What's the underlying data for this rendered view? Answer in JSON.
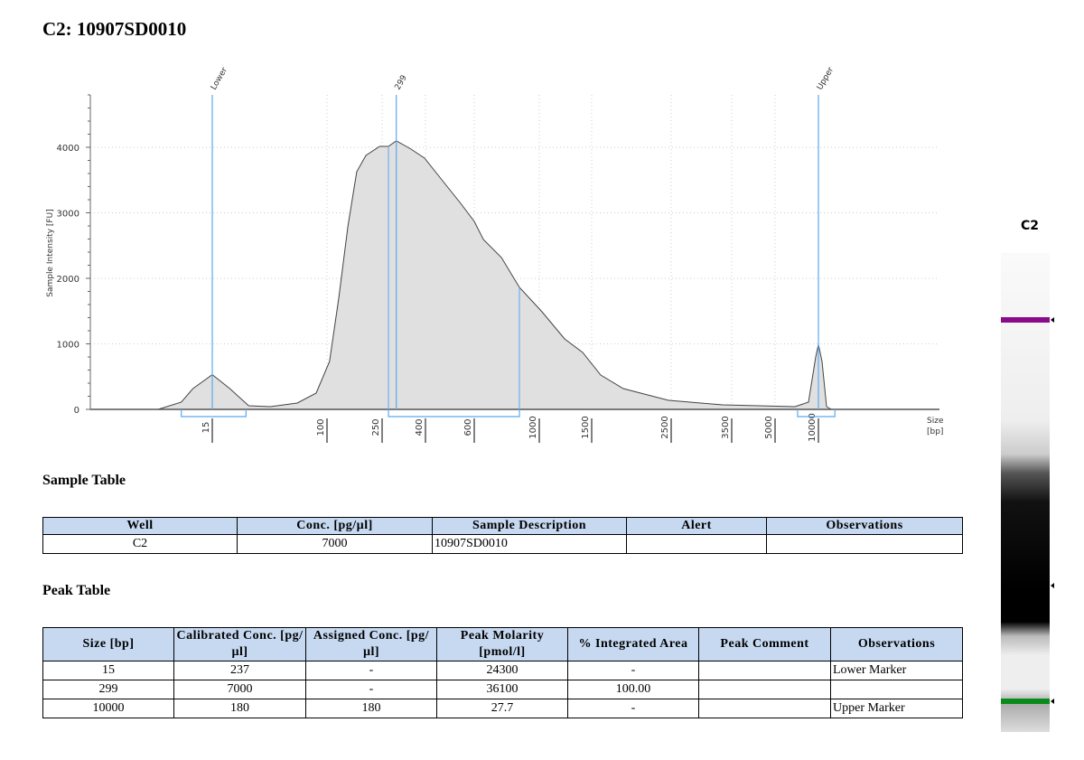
{
  "title": "C2: 10907SD0010",
  "chart_data": {
    "type": "area",
    "ylabel": "Sample Intensity [FU]",
    "xlabel": "Size\n[bp]",
    "xlabel_line1": "Size",
    "xlabel_line2": "[bp]",
    "ylim": [
      0,
      4800
    ],
    "yticks": [
      0,
      1000,
      2000,
      3000,
      4000
    ],
    "xticks": [
      15,
      100,
      250,
      400,
      600,
      1000,
      1500,
      2500,
      3500,
      5000,
      10000
    ],
    "x_scale": "non-linear (size-calibrated)",
    "grid": true,
    "fill_color": "#e0e0e0",
    "line_color": "#444444",
    "marker_color": "#5aa9f0",
    "markers": [
      {
        "label": "Lower",
        "size": 15
      },
      {
        "label": "299",
        "size": 299
      },
      {
        "label": "Upper",
        "size": 10000
      }
    ],
    "regions": [
      {
        "from": 7,
        "to": 40
      },
      {
        "from": 272,
        "to": 878
      },
      {
        "from": 7600,
        "to": 11900
      }
    ],
    "curve": [
      [
        1,
        0
      ],
      [
        7,
        110
      ],
      [
        10,
        317
      ],
      [
        15,
        530
      ],
      [
        28,
        317
      ],
      [
        42,
        55
      ],
      [
        58,
        41
      ],
      [
        78,
        97
      ],
      [
        92,
        248
      ],
      [
        107,
        731
      ],
      [
        132,
        1697
      ],
      [
        157,
        2800
      ],
      [
        181,
        3628
      ],
      [
        206,
        3876
      ],
      [
        243,
        4014
      ],
      [
        272,
        4014
      ],
      [
        299,
        4100
      ],
      [
        350,
        3972
      ],
      [
        397,
        3834
      ],
      [
        470,
        3490
      ],
      [
        544,
        3145
      ],
      [
        600,
        2869
      ],
      [
        656,
        2593
      ],
      [
        767,
        2317
      ],
      [
        878,
        1862
      ],
      [
        1026,
        1490
      ],
      [
        1241,
        1076
      ],
      [
        1414,
        869
      ],
      [
        1614,
        524
      ],
      [
        1898,
        317
      ],
      [
        2466,
        138
      ],
      [
        3351,
        69
      ],
      [
        7290,
        41
      ],
      [
        8850,
        110
      ],
      [
        9690,
        800
      ],
      [
        10000,
        990
      ],
      [
        10416,
        731
      ],
      [
        10936,
        41
      ],
      [
        11500,
        0
      ],
      [
        23900,
        0
      ]
    ]
  },
  "gel": {
    "label": "C2",
    "lower_color": "#8b0a8b",
    "upper_color": "#0a8a1a"
  },
  "sample_table": {
    "heading": "Sample Table",
    "columns": [
      "Well",
      "Conc. [pg/µl]",
      "Sample Description",
      "Alert",
      "Observations"
    ],
    "rows": [
      [
        "C2",
        "7000",
        "10907SD0010",
        "",
        ""
      ]
    ]
  },
  "peak_table": {
    "heading": "Peak Table",
    "columns": [
      "Size [bp]",
      "Calibrated Conc. [pg/µl]",
      "Assigned Conc. [pg/µl]",
      "Peak Molarity [pmol/l]",
      "% Integrated Area",
      "Peak Comment",
      "Observations"
    ],
    "rows": [
      [
        "15",
        "237",
        "-",
        "24300",
        "-",
        "",
        "Lower Marker"
      ],
      [
        "299",
        "7000",
        "-",
        "36100",
        "100.00",
        "",
        ""
      ],
      [
        "10000",
        "180",
        "180",
        "27.7",
        "-",
        "",
        "Upper Marker"
      ]
    ]
  }
}
